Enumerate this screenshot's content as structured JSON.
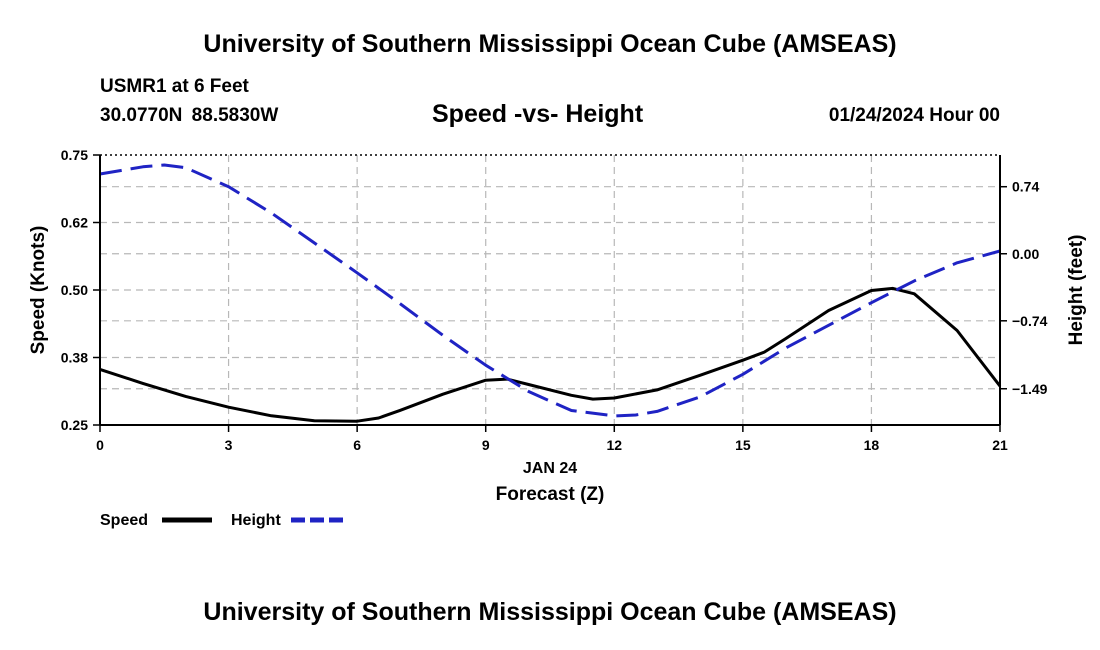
{
  "header": {
    "title": "University of Southern Mississippi Ocean Cube (AMSEAS)",
    "station": "USMR1 at 6 Feet",
    "coords": "30.0770N  88.5830W",
    "subtitle": "Speed -vs- Height",
    "datetime": "01/24/2024 Hour 00",
    "footer_title": "University of Southern Mississippi Ocean Cube (AMSEAS)"
  },
  "chart_data": {
    "type": "line",
    "title": "Speed -vs- Height",
    "xlabel": "Forecast (Z)",
    "xlabel_date": "JAN 24",
    "ylabel_left": "Speed (Knots)",
    "ylabel_right": "Height (feet)",
    "xlim": [
      0,
      21
    ],
    "ylim_left": [
      0.25,
      0.75
    ],
    "ylim_right": [
      -1.89,
      1.09
    ],
    "x_ticks": [
      0,
      3,
      6,
      9,
      12,
      15,
      18,
      21
    ],
    "x_tick_labels": [
      "0",
      "3",
      "6",
      "9",
      "12",
      "15",
      "18",
      "21"
    ],
    "left_ticks": [
      0.25,
      0.375,
      0.5,
      0.625,
      0.75
    ],
    "left_tick_labels": [
      "0.25",
      "0.38",
      "0.50",
      "0.62",
      "0.75"
    ],
    "right_ticks": [
      0.74,
      0.0,
      -0.74,
      -1.49
    ],
    "right_tick_labels": [
      "0.74",
      "0.00",
      "−0.74",
      "−1.49"
    ],
    "grid": true,
    "series": [
      {
        "name": "Speed",
        "axis": "left",
        "color": "#000000",
        "style": "solid",
        "x": [
          0,
          1,
          2,
          3,
          4,
          5,
          6,
          6.5,
          7,
          8,
          9,
          9.5,
          10,
          11,
          11.5,
          12,
          13,
          14,
          15,
          15.5,
          16,
          17,
          18,
          18.5,
          19,
          20,
          21
        ],
        "values": [
          0.353,
          0.327,
          0.303,
          0.283,
          0.267,
          0.258,
          0.257,
          0.263,
          0.277,
          0.307,
          0.333,
          0.335,
          0.325,
          0.305,
          0.298,
          0.3,
          0.315,
          0.342,
          0.37,
          0.385,
          0.41,
          0.462,
          0.499,
          0.503,
          0.493,
          0.425,
          0.322
        ]
      },
      {
        "name": "Height",
        "axis": "right",
        "color": "#1f23c4",
        "style": "dashed",
        "x": [
          0,
          1,
          1.5,
          2,
          3,
          4,
          5,
          6,
          7,
          8,
          9,
          10,
          11,
          12,
          12.5,
          13,
          14,
          15,
          16,
          17,
          18,
          19,
          20,
          21
        ],
        "values": [
          0.88,
          0.96,
          0.98,
          0.95,
          0.74,
          0.45,
          0.12,
          -0.21,
          -0.55,
          -0.9,
          -1.23,
          -1.52,
          -1.73,
          -1.79,
          -1.78,
          -1.74,
          -1.58,
          -1.33,
          -1.04,
          -0.79,
          -0.54,
          -0.3,
          -0.1,
          0.03
        ]
      }
    ],
    "legend": {
      "position": "bottom-left",
      "items": [
        {
          "label": "Speed",
          "color": "#000000",
          "style": "solid"
        },
        {
          "label": "Height",
          "color": "#1f23c4",
          "style": "dashed"
        }
      ]
    }
  }
}
